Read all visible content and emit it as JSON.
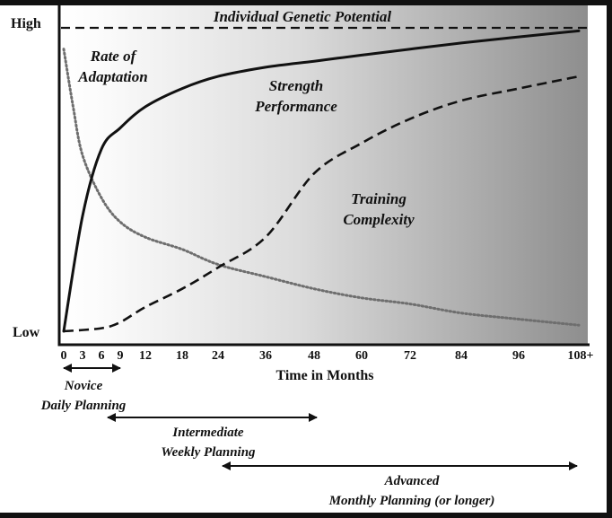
{
  "chart_data": {
    "type": "line",
    "title": "",
    "xlabel": "Time in Months",
    "ylabel": "",
    "x_ticks": [
      "0",
      "3",
      "6",
      "9",
      "12",
      "18",
      "24",
      "36",
      "48",
      "60",
      "72",
      "84",
      "96",
      "108+"
    ],
    "y_labels": {
      "high": "High",
      "low": "Low"
    },
    "ylim": [
      0,
      1
    ],
    "background": "gradient white-to-gray",
    "grid": false,
    "legend": "none",
    "series": [
      {
        "name": "Individual Genetic Potential",
        "style": "dashed",
        "label_lines": [
          "Individual Genetic Potential"
        ],
        "x_ticks": [
          0,
          13
        ],
        "values": [
          1.0,
          1.0
        ]
      },
      {
        "name": "Rate of Adaptation",
        "style": "dotted",
        "label_lines": [
          "Rate of",
          "Adaptation"
        ],
        "x_ticks": [
          0,
          0.5,
          1,
          2,
          3,
          4,
          5,
          6,
          7,
          8,
          9,
          10,
          11,
          12,
          13
        ],
        "values": [
          0.93,
          0.74,
          0.58,
          0.44,
          0.36,
          0.31,
          0.27,
          0.22,
          0.18,
          0.14,
          0.11,
          0.09,
          0.06,
          0.04,
          0.02
        ]
      },
      {
        "name": "Strength Performance",
        "style": "solid",
        "label_lines": [
          "Strength",
          "Performance"
        ],
        "x_ticks": [
          0,
          1,
          2,
          3,
          4,
          5,
          6,
          7,
          8,
          9,
          10,
          11,
          12,
          13
        ],
        "values": [
          0.0,
          0.38,
          0.6,
          0.67,
          0.74,
          0.8,
          0.84,
          0.87,
          0.89,
          0.91,
          0.93,
          0.95,
          0.97,
          0.99
        ]
      },
      {
        "name": "Training Complexity",
        "style": "dashed",
        "label_lines": [
          "Training",
          "Complexity"
        ],
        "x_ticks": [
          0,
          2,
          3,
          4,
          5,
          6,
          7,
          8,
          9,
          10,
          11,
          12,
          13
        ],
        "values": [
          0.0,
          0.01,
          0.03,
          0.08,
          0.14,
          0.21,
          0.31,
          0.52,
          0.62,
          0.7,
          0.76,
          0.8,
          0.84
        ]
      }
    ],
    "phases": [
      {
        "name": "Novice",
        "subtitle": "Daily Planning",
        "from_tick": 0,
        "to_tick": 3
      },
      {
        "name": "Intermediate",
        "subtitle": "Weekly Planning",
        "from_tick": 2,
        "to_tick": 8
      },
      {
        "name": "Advanced",
        "subtitle": "Monthly Planning (or longer)",
        "from_tick": 6,
        "to_tick": 13
      }
    ]
  }
}
